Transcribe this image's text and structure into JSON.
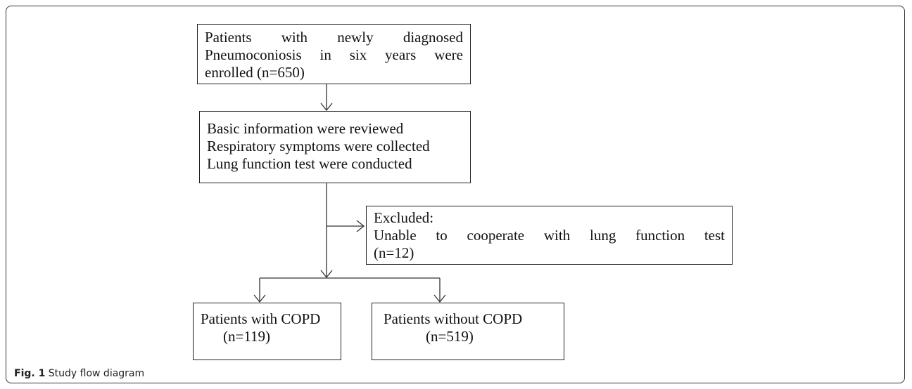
{
  "nodes": [
    {
      "lines": [
        "Patients with newly diagnosed",
        "Pneumoconiosis in six years were",
        "enrolled (n=650)"
      ]
    },
    {
      "lines": [
        "Basic information were reviewed",
        "Respiratory symptoms were collected",
        "Lung function test were conducted"
      ]
    },
    {
      "lines": [
        "Excluded:",
        "Unable to cooperate with lung function test",
        "(n=12)"
      ]
    },
    {
      "lines": [
        "Patients with COPD",
        "(n=119)"
      ]
    },
    {
      "lines": [
        "Patients without COPD",
        "(n=519)"
      ]
    }
  ],
  "caption": {
    "label": "Fig. 1",
    "text": "Study flow diagram"
  }
}
